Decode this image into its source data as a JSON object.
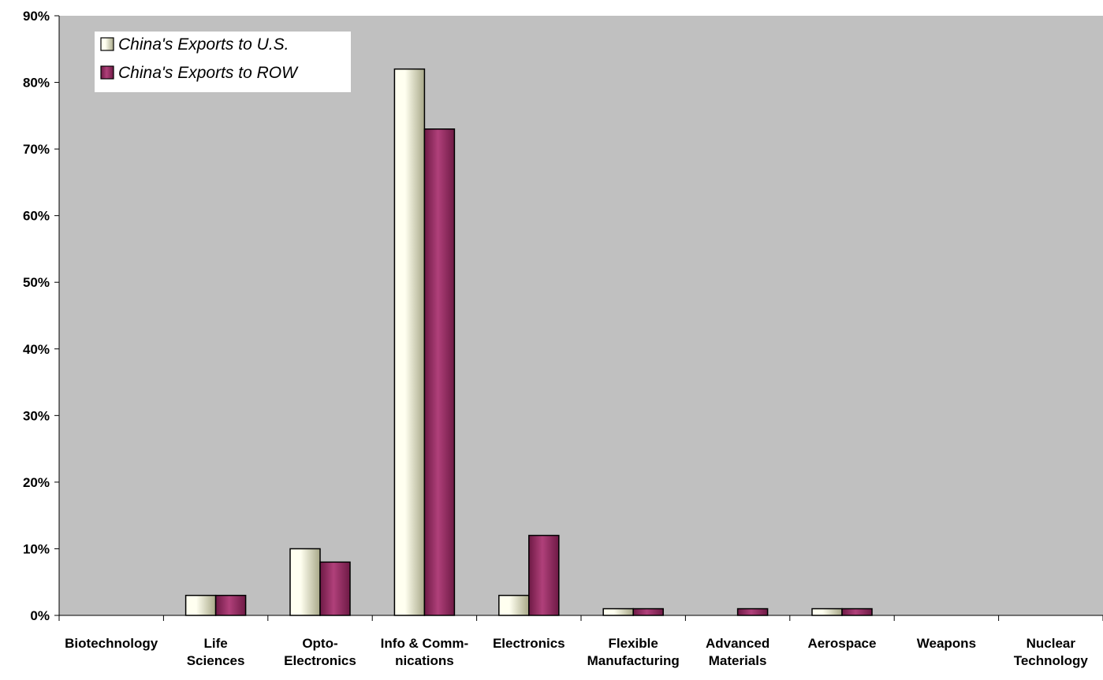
{
  "chart_data": {
    "type": "bar",
    "categories": [
      [
        "Biotechnology"
      ],
      [
        "Life",
        "Sciences"
      ],
      [
        "Opto-",
        "Electronics"
      ],
      [
        "Info & Comm-",
        "nications"
      ],
      [
        "Electronics"
      ],
      [
        "Flexible",
        "Manufacturing"
      ],
      [
        "Advanced",
        "Materials"
      ],
      [
        "Aerospace"
      ],
      [
        "Weapons"
      ],
      [
        "Nuclear",
        "Technology"
      ]
    ],
    "series": [
      {
        "name": "China's Exports to U.S.",
        "values": [
          0,
          3,
          10,
          82,
          3,
          1,
          0,
          1,
          0,
          0
        ]
      },
      {
        "name": "China's Exports to ROW",
        "values": [
          0,
          3,
          8,
          73,
          12,
          1,
          1,
          1,
          0,
          0
        ]
      }
    ],
    "ylim": [
      0,
      90
    ],
    "yticks": [
      0,
      10,
      20,
      30,
      40,
      50,
      60,
      70,
      80,
      90
    ],
    "ytick_suffix": "%",
    "legend_position": "top-left",
    "grid": false,
    "colors": {
      "plot_background": "#c0c0c0",
      "series_1_light": "#fffff0",
      "series_1_dark": "#a8a888",
      "series_2_light": "#b0407a",
      "series_2_dark": "#6e1a45",
      "legend_background": "#ffffff",
      "axis": "#000000"
    }
  }
}
